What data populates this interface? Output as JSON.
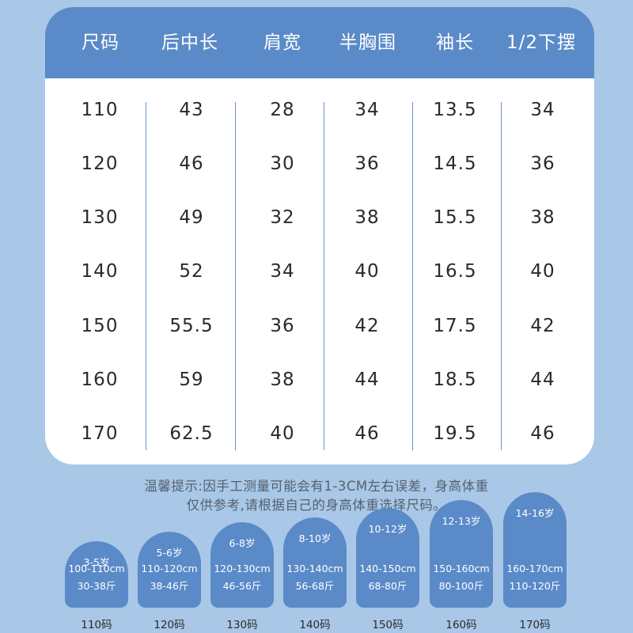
{
  "table": {
    "headers": [
      "尺码",
      "后中长",
      "肩宽",
      "半胸围",
      "袖长",
      "1/2下摆"
    ],
    "rows": [
      [
        "110",
        "43",
        "28",
        "34",
        "13.5",
        "34"
      ],
      [
        "120",
        "46",
        "30",
        "36",
        "14.5",
        "36"
      ],
      [
        "130",
        "49",
        "32",
        "38",
        "15.5",
        "38"
      ],
      [
        "140",
        "52",
        "34",
        "40",
        "16.5",
        "40"
      ],
      [
        "150",
        "55.5",
        "36",
        "42",
        "17.5",
        "42"
      ],
      [
        "160",
        "59",
        "38",
        "44",
        "18.5",
        "44"
      ],
      [
        "170",
        "62.5",
        "40",
        "46",
        "19.5",
        "46"
      ]
    ]
  },
  "note": {
    "line1": "温馨提示:因手工测量可能会有1-3CM左右误差，身高体重",
    "line2": "仅供参考,请根据自己的身高体重选择尺码。"
  },
  "badges": [
    {
      "age": "3-5岁",
      "height": "100-110cm",
      "weight": "30-38斤",
      "label": "110码"
    },
    {
      "age": "5-6岁",
      "height": "110-120cm",
      "weight": "38-46斤",
      "label": "120码"
    },
    {
      "age": "6-8岁",
      "height": "120-130cm",
      "weight": "46-56斤",
      "label": "130码"
    },
    {
      "age": "8-10岁",
      "height": "130-140cm",
      "weight": "56-68斤",
      "label": "140码"
    },
    {
      "age": "10-12岁",
      "height": "140-150cm",
      "weight": "68-80斤",
      "label": "150码"
    },
    {
      "age": "12-13岁",
      "height": "150-160cm",
      "weight": "80-100斤",
      "label": "160码"
    },
    {
      "age": "14-16岁",
      "height": "160-170cm",
      "weight": "110-120斤",
      "label": "170码"
    }
  ],
  "colors": {
    "background": "#a9c7e6",
    "header": "#5a8ac8",
    "card": "#ffffff",
    "text": "#2a2a2a"
  }
}
